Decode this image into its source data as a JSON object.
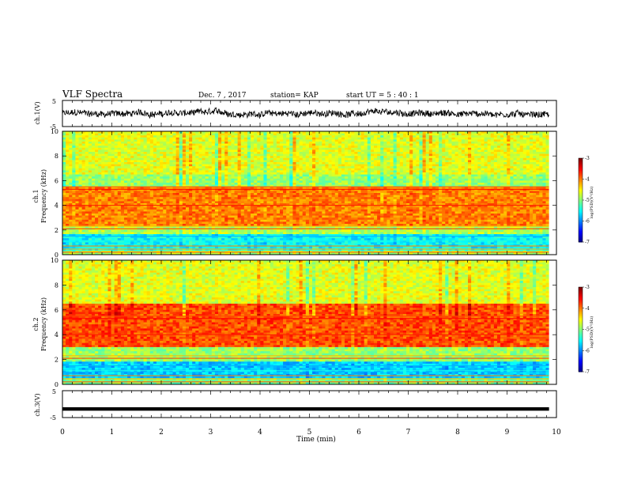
{
  "header": {
    "title": "VLF Spectra",
    "date": "Dec. 7 , 2017",
    "station": "station= KAP",
    "start": "start  UT =   5 : 40 : 1"
  },
  "panels": {
    "ch1_wave_label": "ch.1(V)",
    "ch1_spec_label": "ch.1",
    "ch2_spec_label": "ch.2",
    "ch3_wave_label": "ch.3(V)",
    "freq_label": "Frequency (kHz)",
    "colorbar_label": "log(PSD)(V²/Hz)"
  },
  "x_axis": {
    "label": "Time (min)",
    "ticks": [
      "0",
      "1",
      "2",
      "3",
      "4",
      "5",
      "6",
      "7",
      "8",
      "9",
      "10"
    ]
  },
  "chart_data": [
    {
      "type": "line",
      "name_label": "ch.1(V)",
      "xlabel": "Time (min)",
      "ylabel": "ch.1(V)",
      "xlim": [
        0,
        9.85
      ],
      "ylim": [
        -5,
        5
      ],
      "y_ticks": [
        "5",
        "-5"
      ],
      "description_values": {
        "mean": 0.0,
        "amplitude_approx": 1.5
      }
    },
    {
      "type": "heatmap",
      "channel": "ch.1",
      "ylabel": "Frequency (kHz)",
      "ylim": [
        0,
        10
      ],
      "y_ticks": [
        "0",
        "2",
        "4",
        "6",
        "8",
        "10"
      ],
      "colorbar": {
        "label": "log(PSD)(V²/Hz)",
        "range": [
          -7,
          -3
        ],
        "ticks": [
          "-3",
          "-4",
          "-5",
          "-6",
          "-7"
        ]
      },
      "bands": [
        {
          "f_low": 6.5,
          "f_high": 10,
          "level": -4.6
        },
        {
          "f_low": 5.5,
          "f_high": 6.5,
          "level": -4.9
        },
        {
          "f_low": 2.4,
          "f_high": 5.5,
          "level": -4.0
        },
        {
          "f_low": 1.6,
          "f_high": 2.4,
          "level": -4.8
        },
        {
          "f_low": 0.3,
          "f_high": 1.6,
          "level": -5.5
        },
        {
          "f_low": 0.0,
          "f_high": 0.3,
          "level": -4.8
        }
      ]
    },
    {
      "type": "heatmap",
      "channel": "ch.2",
      "ylabel": "Frequency (kHz)",
      "ylim": [
        0,
        10
      ],
      "y_ticks": [
        "0",
        "2",
        "4",
        "6",
        "8",
        "10"
      ],
      "colorbar": {
        "label": "log(PSD)(V²/Hz)",
        "range": [
          -7,
          -3
        ],
        "ticks": [
          "-3",
          "-4",
          "-5",
          "-6",
          "-7"
        ]
      },
      "bands": [
        {
          "f_low": 6.5,
          "f_high": 10,
          "level": -4.6
        },
        {
          "f_low": 3.0,
          "f_high": 6.5,
          "level": -3.8
        },
        {
          "f_low": 1.8,
          "f_high": 3.0,
          "level": -4.9
        },
        {
          "f_low": 0.5,
          "f_high": 1.8,
          "level": -5.7
        },
        {
          "f_low": 0.0,
          "f_high": 0.5,
          "level": -5.0
        }
      ]
    },
    {
      "type": "line",
      "name_label": "ch.3(V)",
      "xlabel": "Time (min)",
      "ylabel": "ch.3(V)",
      "xlim": [
        0,
        9.85
      ],
      "ylim": [
        -5,
        5
      ],
      "y_ticks": [
        "5",
        "-5"
      ],
      "values_constant": -1.8
    }
  ]
}
